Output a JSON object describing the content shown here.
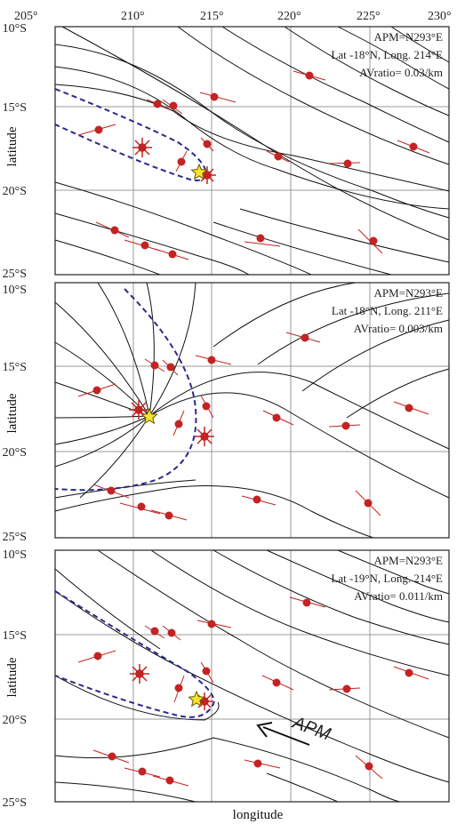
{
  "figure": {
    "x_tick_labels": [
      "205°",
      "210°",
      "215°",
      "220°",
      "225°",
      "230°"
    ],
    "y_tick_labels": [
      "10°S",
      "15°S",
      "20°S",
      "25°S"
    ],
    "x_axis_title": "longitude",
    "y_axis_title": "latitude",
    "apm_arrow_label": "APM",
    "colors": {
      "grid": "#9a9a9a",
      "contour": "#111111",
      "null_line": "#2a2a8c",
      "station": "#c42323",
      "star_fill": "#f5e22a",
      "star_stroke": "#6b5a00"
    }
  },
  "panels": [
    {
      "apm": "APM=N293°E",
      "location": "Lat -18°N, Long. 214°E",
      "avratio": "AVratio= 0.03/km"
    },
    {
      "apm": "APM=N293°E",
      "location": "Lat -18°N, Long. 211°E",
      "avratio": "AVratio= 0.003/km"
    },
    {
      "apm": "APM=N293°E",
      "location": "Lat -19°N, Long. 214°E",
      "avratio": "AVratio= 0.011/km"
    }
  ]
}
